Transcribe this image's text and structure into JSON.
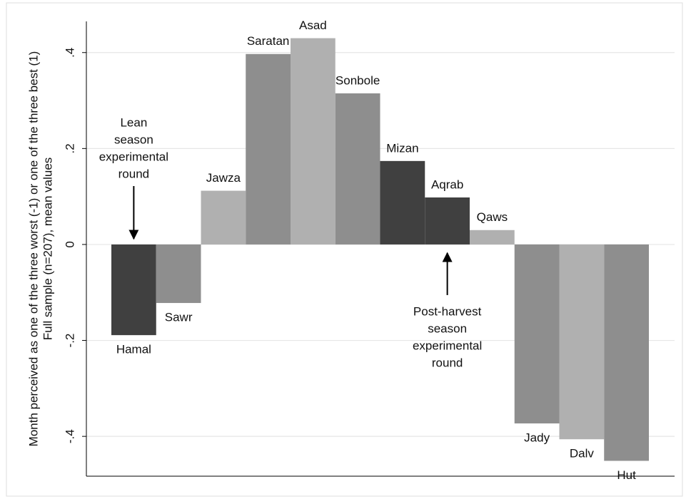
{
  "chart_data": {
    "type": "bar",
    "ylabel": [
      "Month perceived as one of the three worst (-1) or one of the three best (1)",
      "Full sample (n=207), mean values"
    ],
    "categories": [
      "Hamal",
      "Sawr",
      "Jawza",
      "Saratan",
      "Asad",
      "Sonbole",
      "Mizan",
      "Aqrab",
      "Qaws",
      "Jady",
      "Dalv",
      "Hut"
    ],
    "values": [
      -0.189,
      -0.122,
      0.112,
      0.397,
      0.43,
      0.315,
      0.174,
      0.098,
      0.03,
      -0.373,
      -0.406,
      -0.451
    ],
    "colors": [
      "#404040",
      "#8e8e8e",
      "#b0b0b0",
      "#8e8e8e",
      "#b0b0b0",
      "#8e8e8e",
      "#404040",
      "#404040",
      "#b0b0b0",
      "#8e8e8e",
      "#b0b0b0",
      "#8e8e8e"
    ],
    "ylim": [
      -0.483,
      0.465
    ],
    "yticks": [
      {
        "value": -0.4,
        "label": "-.4"
      },
      {
        "value": -0.2,
        "label": "-.2"
      },
      0,
      {
        "value": 0.2,
        "label": ".2"
      },
      {
        "value": 0.4,
        "label": ".4"
      }
    ],
    "grid": true,
    "annotations": [
      {
        "lines": [
          "Lean",
          "season",
          "experimental",
          "round"
        ],
        "category": 0,
        "arrow": "down"
      },
      {
        "lines": [
          "Post-harvest",
          "season",
          "experimental",
          "round"
        ],
        "category": 7,
        "arrow": "up"
      }
    ]
  }
}
